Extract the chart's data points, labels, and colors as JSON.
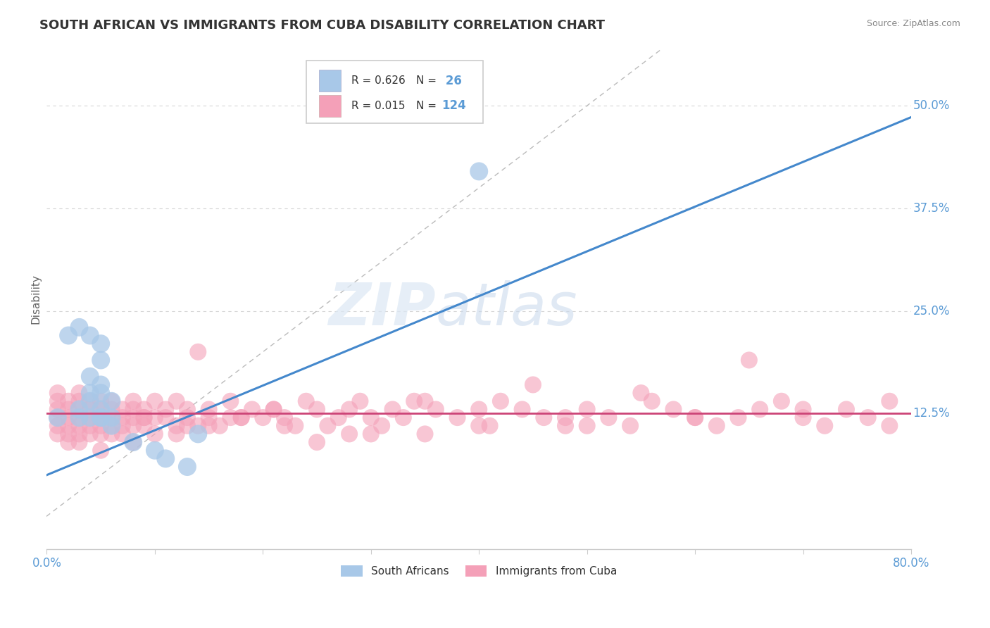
{
  "title": "SOUTH AFRICAN VS IMMIGRANTS FROM CUBA DISABILITY CORRELATION CHART",
  "source": "Source: ZipAtlas.com",
  "ylabel": "Disability",
  "xlim": [
    0.0,
    0.8
  ],
  "ylim": [
    -0.04,
    0.57
  ],
  "yticks": [
    0.125,
    0.25,
    0.375,
    0.5
  ],
  "ytick_labels": [
    "12.5%",
    "25.0%",
    "37.5%",
    "50.0%"
  ],
  "blue_color": "#a8c8e8",
  "pink_color": "#f4a0b8",
  "blue_line_color": "#4488cc",
  "pink_line_color": "#cc4477",
  "grid_color": "#cccccc",
  "title_color": "#333333",
  "axis_label_color": "#5b9bd5",
  "legend_r_color": "#333333",
  "legend_n_color": "#5b9bd5",
  "sa_x": [
    0.01,
    0.02,
    0.03,
    0.03,
    0.03,
    0.04,
    0.04,
    0.04,
    0.04,
    0.04,
    0.05,
    0.05,
    0.05,
    0.05,
    0.05,
    0.05,
    0.05,
    0.06,
    0.06,
    0.06,
    0.08,
    0.1,
    0.11,
    0.13,
    0.14,
    0.4
  ],
  "sa_y": [
    0.12,
    0.22,
    0.23,
    0.12,
    0.13,
    0.12,
    0.14,
    0.15,
    0.17,
    0.22,
    0.12,
    0.12,
    0.13,
    0.15,
    0.16,
    0.19,
    0.21,
    0.11,
    0.12,
    0.14,
    0.09,
    0.08,
    0.07,
    0.06,
    0.1,
    0.42
  ],
  "cuba_x": [
    0.01,
    0.01,
    0.01,
    0.01,
    0.01,
    0.01,
    0.02,
    0.02,
    0.02,
    0.02,
    0.02,
    0.02,
    0.03,
    0.03,
    0.03,
    0.03,
    0.03,
    0.03,
    0.04,
    0.04,
    0.04,
    0.04,
    0.04,
    0.05,
    0.05,
    0.05,
    0.05,
    0.05,
    0.06,
    0.06,
    0.06,
    0.06,
    0.07,
    0.07,
    0.07,
    0.07,
    0.08,
    0.08,
    0.08,
    0.08,
    0.09,
    0.09,
    0.09,
    0.1,
    0.1,
    0.1,
    0.11,
    0.11,
    0.12,
    0.12,
    0.13,
    0.13,
    0.14,
    0.14,
    0.15,
    0.15,
    0.16,
    0.17,
    0.18,
    0.19,
    0.2,
    0.21,
    0.22,
    0.23,
    0.24,
    0.25,
    0.26,
    0.27,
    0.28,
    0.29,
    0.3,
    0.31,
    0.32,
    0.33,
    0.35,
    0.36,
    0.38,
    0.4,
    0.42,
    0.44,
    0.46,
    0.48,
    0.5,
    0.52,
    0.54,
    0.56,
    0.58,
    0.6,
    0.62,
    0.64,
    0.66,
    0.68,
    0.7,
    0.72,
    0.74,
    0.76,
    0.78,
    0.65,
    0.55,
    0.45,
    0.35,
    0.25,
    0.15,
    0.05,
    0.08,
    0.12,
    0.18,
    0.22,
    0.3,
    0.4,
    0.5,
    0.6,
    0.7,
    0.78,
    0.03,
    0.06,
    0.09,
    0.13,
    0.17,
    0.21,
    0.28,
    0.34,
    0.41,
    0.48
  ],
  "cuba_y": [
    0.12,
    0.13,
    0.14,
    0.1,
    0.11,
    0.15,
    0.12,
    0.11,
    0.13,
    0.14,
    0.1,
    0.09,
    0.12,
    0.13,
    0.11,
    0.14,
    0.1,
    0.15,
    0.12,
    0.13,
    0.11,
    0.14,
    0.1,
    0.12,
    0.11,
    0.13,
    0.14,
    0.1,
    0.12,
    0.13,
    0.11,
    0.14,
    0.12,
    0.11,
    0.13,
    0.1,
    0.12,
    0.13,
    0.11,
    0.14,
    0.12,
    0.11,
    0.13,
    0.12,
    0.14,
    0.1,
    0.12,
    0.13,
    0.11,
    0.14,
    0.13,
    0.12,
    0.11,
    0.2,
    0.12,
    0.13,
    0.11,
    0.14,
    0.12,
    0.13,
    0.12,
    0.13,
    0.12,
    0.11,
    0.14,
    0.13,
    0.11,
    0.12,
    0.13,
    0.14,
    0.12,
    0.11,
    0.13,
    0.12,
    0.14,
    0.13,
    0.12,
    0.11,
    0.14,
    0.13,
    0.12,
    0.11,
    0.13,
    0.12,
    0.11,
    0.14,
    0.13,
    0.12,
    0.11,
    0.12,
    0.13,
    0.14,
    0.12,
    0.11,
    0.13,
    0.12,
    0.14,
    0.19,
    0.15,
    0.16,
    0.1,
    0.09,
    0.11,
    0.08,
    0.09,
    0.1,
    0.12,
    0.11,
    0.1,
    0.13,
    0.11,
    0.12,
    0.13,
    0.11,
    0.09,
    0.1,
    0.12,
    0.11,
    0.12,
    0.13,
    0.1,
    0.14,
    0.11,
    0.12
  ]
}
